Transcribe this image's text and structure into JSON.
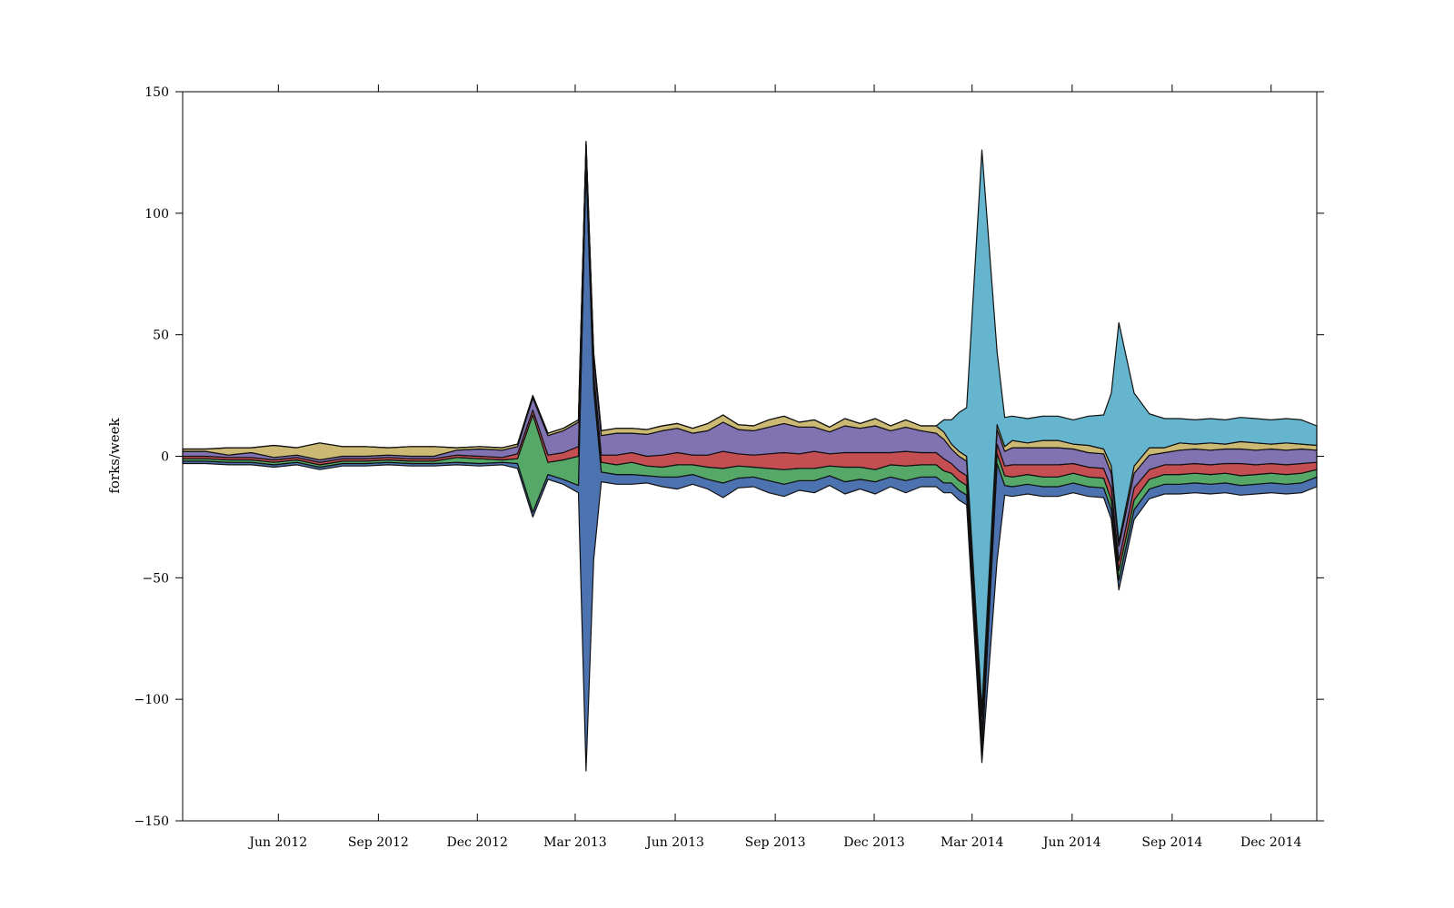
{
  "chart_data": {
    "type": "area",
    "title": "",
    "xlabel": "",
    "ylabel": "forks/week",
    "ylim": [
      -150,
      150
    ],
    "xlim": [
      "2012-03-05",
      "2015-01-12"
    ],
    "yticks": [
      150,
      100,
      50,
      0,
      -50,
      -100,
      -150
    ],
    "ytick_labels": [
      "150",
      "100",
      "50",
      "0",
      "−50",
      "−100",
      "−150"
    ],
    "xticks": [
      {
        "date": "2012-06-01",
        "label": "Jun 2012"
      },
      {
        "date": "2012-09-01",
        "label": "Sep 2012"
      },
      {
        "date": "2012-12-01",
        "label": "Dec 2012"
      },
      {
        "date": "2013-03-01",
        "label": "Mar 2013"
      },
      {
        "date": "2013-06-01",
        "label": "Jun 2013"
      },
      {
        "date": "2013-09-01",
        "label": "Sep 2013"
      },
      {
        "date": "2013-12-01",
        "label": "Dec 2013"
      },
      {
        "date": "2014-03-01",
        "label": "Mar 2014"
      },
      {
        "date": "2014-06-01",
        "label": "Jun 2014"
      },
      {
        "date": "2014-09-01",
        "label": "Sep 2014"
      },
      {
        "date": "2014-12-01",
        "label": "Dec 2014"
      }
    ],
    "baseline": "symmetric (streamgraph, centered at 0)",
    "grid": false,
    "legend": "none",
    "palette": [
      "#4c72b0",
      "#55a868",
      "#c44e52",
      "#8172b2",
      "#ccb974",
      "#64b5cd"
    ],
    "x": [
      "2012-03-05",
      "2012-03-26",
      "2012-04-16",
      "2012-05-07",
      "2012-05-28",
      "2012-06-18",
      "2012-07-09",
      "2012-07-30",
      "2012-08-20",
      "2012-09-10",
      "2012-10-01",
      "2012-10-22",
      "2012-11-12",
      "2012-12-03",
      "2012-12-24",
      "2013-01-07",
      "2013-01-21",
      "2013-02-04",
      "2013-02-18",
      "2013-03-04",
      "2013-03-11",
      "2013-03-18",
      "2013-03-25",
      "2013-04-08",
      "2013-04-22",
      "2013-05-06",
      "2013-05-20",
      "2013-06-03",
      "2013-06-17",
      "2013-07-01",
      "2013-07-15",
      "2013-07-29",
      "2013-08-12",
      "2013-08-26",
      "2013-09-09",
      "2013-09-23",
      "2013-10-07",
      "2013-10-21",
      "2013-11-04",
      "2013-11-18",
      "2013-12-02",
      "2013-12-16",
      "2013-12-30",
      "2014-01-13",
      "2014-01-27",
      "2014-02-03",
      "2014-02-10",
      "2014-02-17",
      "2014-02-24",
      "2014-03-10",
      "2014-03-24",
      "2014-03-31",
      "2014-04-07",
      "2014-04-21",
      "2014-05-05",
      "2014-05-19",
      "2014-06-02",
      "2014-06-16",
      "2014-06-30",
      "2014-07-07",
      "2014-07-14",
      "2014-07-28",
      "2014-08-11",
      "2014-08-25",
      "2014-09-08",
      "2014-09-22",
      "2014-10-06",
      "2014-10-20",
      "2014-11-03",
      "2014-11-17",
      "2014-12-01",
      "2014-12-15",
      "2014-12-29",
      "2015-01-12"
    ],
    "series": [
      {
        "color": "#4c72b0",
        "values": [
          1,
          1,
          1,
          1,
          1,
          1,
          1,
          1,
          1,
          1,
          1,
          1,
          1,
          1,
          1,
          2,
          2,
          2,
          2,
          3,
          250,
          70,
          4,
          4,
          4,
          3,
          4,
          5,
          4,
          4,
          6,
          4,
          4,
          5,
          5,
          4,
          5,
          4,
          5,
          4,
          5,
          4,
          5,
          4,
          4,
          4,
          4,
          4,
          4,
          4,
          40,
          4,
          4,
          4,
          4,
          4,
          4,
          4,
          4,
          4,
          4,
          4,
          4,
          4,
          4,
          4,
          4,
          4,
          4,
          4,
          4,
          4,
          4,
          4
        ]
      },
      {
        "color": "#55a868",
        "values": [
          1,
          1,
          1,
          1,
          1,
          1,
          1,
          1,
          1,
          1,
          1,
          1,
          2,
          2,
          1,
          2,
          40,
          5,
          8,
          12,
          2,
          4,
          4,
          4,
          5,
          4,
          4,
          5,
          4,
          5,
          6,
          5,
          4,
          5,
          6,
          5,
          5,
          4,
          6,
          5,
          5,
          5,
          6,
          5,
          5,
          5,
          4,
          4,
          4,
          4,
          4,
          4,
          4,
          4,
          4,
          4,
          4,
          4,
          4,
          4,
          4,
          4,
          4,
          4,
          4,
          4,
          4,
          4,
          4,
          4,
          4,
          4,
          4,
          3
        ]
      },
      {
        "color": "#c44e52",
        "values": [
          1,
          1,
          1,
          1,
          1,
          1,
          1,
          1,
          1,
          1,
          1,
          1,
          1,
          1,
          1,
          2,
          2,
          3,
          3,
          4,
          2,
          3,
          3,
          4,
          4,
          4,
          5,
          5,
          4,
          5,
          7,
          5,
          5,
          6,
          7,
          6,
          7,
          5,
          6,
          6,
          7,
          5,
          6,
          5,
          5,
          5,
          4,
          4,
          4,
          5,
          4,
          4,
          5,
          4,
          5,
          5,
          4,
          4,
          4,
          5,
          4,
          5,
          4,
          4,
          4,
          4,
          4,
          4,
          5,
          4,
          4,
          4,
          4,
          3
        ]
      },
      {
        "color": "#8172b2",
        "values": [
          2,
          2,
          1,
          2,
          1,
          1,
          1,
          1,
          1,
          1,
          1,
          1,
          2,
          3,
          3,
          3,
          5,
          8,
          9,
          10,
          4,
          6,
          8,
          9,
          8,
          9,
          10,
          10,
          9,
          10,
          12,
          10,
          10,
          11,
          12,
          11,
          10,
          9,
          11,
          10,
          11,
          9,
          10,
          9,
          8,
          8,
          6,
          6,
          6,
          6,
          6,
          6,
          7,
          7,
          7,
          7,
          6,
          6,
          6,
          6,
          6,
          6,
          6,
          5,
          6,
          6,
          6,
          6,
          6,
          6,
          6,
          6,
          6,
          5
        ]
      },
      {
        "color": "#ccb974",
        "values": [
          1,
          1,
          3,
          2,
          5,
          3,
          7,
          4,
          4,
          3,
          4,
          4,
          1,
          1,
          1,
          1,
          1,
          1,
          1,
          1,
          1,
          2,
          2,
          2,
          2,
          2,
          2,
          2,
          2,
          3,
          3,
          2,
          2,
          3,
          3,
          2,
          3,
          2,
          3,
          2,
          3,
          2,
          3,
          2,
          3,
          3,
          2,
          2,
          2,
          3,
          2,
          2,
          3,
          2,
          3,
          3,
          2,
          3,
          2,
          3,
          2,
          3,
          3,
          2,
          3,
          2,
          3,
          2,
          3,
          3,
          2,
          3,
          2,
          2
        ]
      },
      {
        "color": "#64b5cd",
        "values": [
          0,
          0,
          0,
          0,
          0,
          0,
          0,
          0,
          0,
          0,
          0,
          0,
          0,
          0,
          0,
          0,
          0,
          0,
          0,
          0,
          0,
          0,
          0,
          0,
          0,
          0,
          0,
          0,
          0,
          0,
          0,
          0,
          0,
          0,
          0,
          0,
          0,
          0,
          0,
          0,
          0,
          0,
          0,
          0,
          0,
          5,
          10,
          16,
          20,
          230,
          30,
          12,
          10,
          10,
          10,
          10,
          10,
          12,
          14,
          30,
          90,
          30,
          14,
          12,
          10,
          10,
          10,
          10,
          10,
          10,
          10,
          10,
          10,
          8
        ]
      }
    ]
  }
}
